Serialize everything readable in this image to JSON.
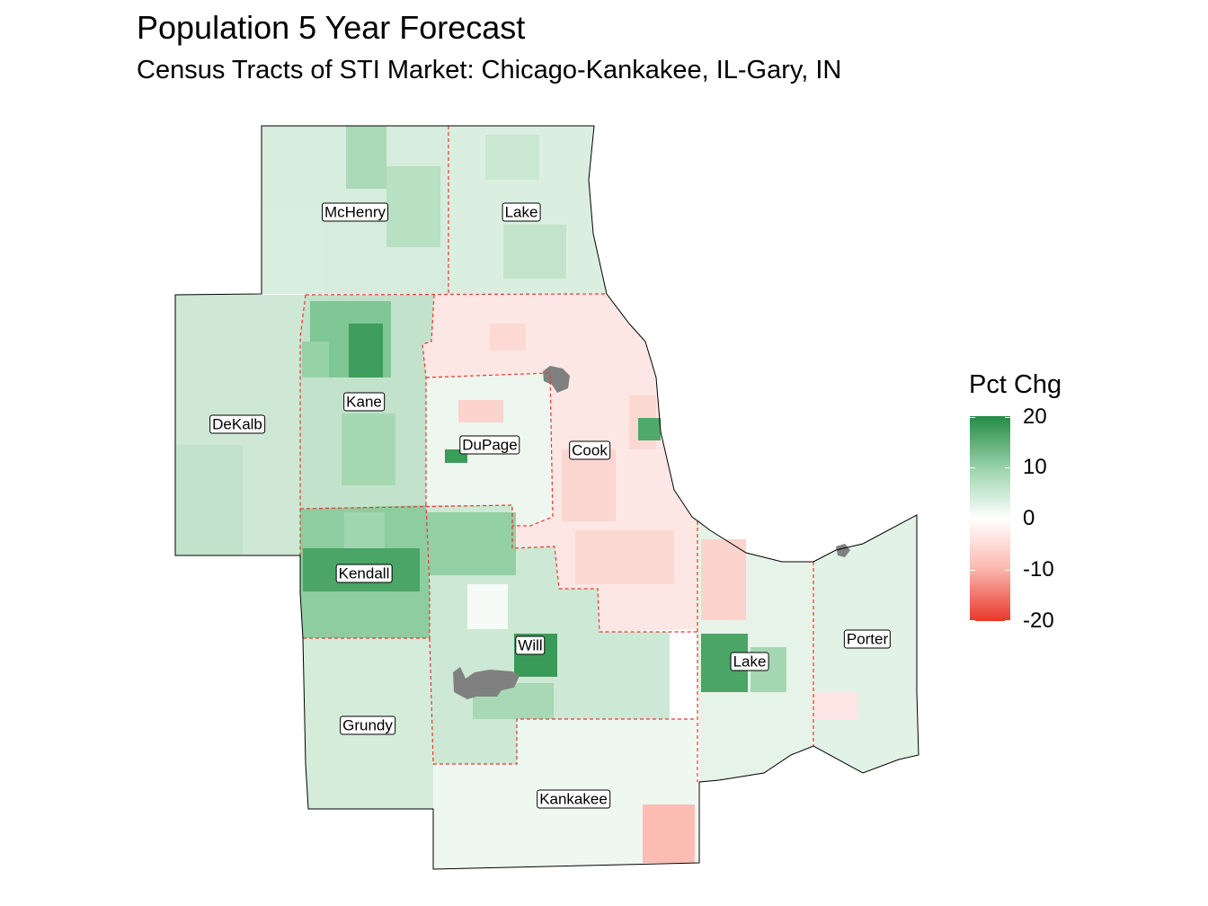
{
  "title": "Population 5 Year Forecast",
  "subtitle": "Census Tracts of STI Market: Chicago-Kankakee, IL-Gary, IN",
  "legend": {
    "title": "Pct Chg",
    "ticks": [
      "20",
      "10",
      "0",
      "-10",
      "-20"
    ],
    "colors": {
      "high": "#238b45",
      "mid": "#ffffff",
      "low": "#e8382b",
      "missing": "#808080"
    }
  },
  "counties": {
    "mchenry": "McHenry",
    "lake_il": "Lake",
    "dekalb": "DeKalb",
    "kane": "Kane",
    "dupage": "DuPage",
    "cook": "Cook",
    "kendall": "Kendall",
    "will": "Will",
    "grundy": "Grundy",
    "kankakee": "Kankakee",
    "lake_in": "Lake",
    "porter": "Porter"
  },
  "county_pct_chg": {
    "mchenry": 6,
    "lake_il": 5,
    "dekalb": 7,
    "kane": 9,
    "dupage": 3,
    "cook": -4,
    "kendall": 14,
    "will": 8,
    "grundy": 6,
    "kankakee": 2,
    "lake_in": 3,
    "porter": 4
  }
}
